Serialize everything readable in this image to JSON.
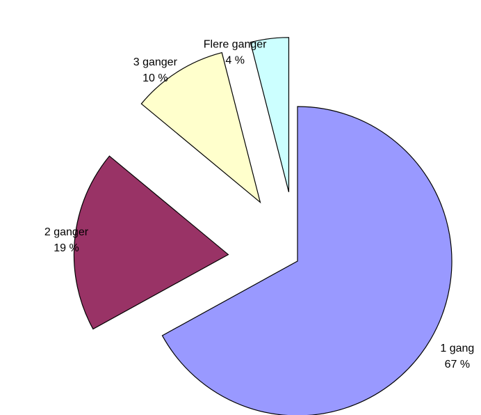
{
  "chart_data": {
    "type": "pie",
    "categories": [
      "1 gang",
      "2 ganger",
      "3 ganger",
      "Flere ganger"
    ],
    "values": [
      67,
      19,
      10,
      4
    ],
    "value_labels": [
      "67 %",
      "19 %",
      "10 %",
      "4 %"
    ],
    "colors": [
      "#9999ff",
      "#993366",
      "#ffffcc",
      "#ccffff"
    ]
  }
}
